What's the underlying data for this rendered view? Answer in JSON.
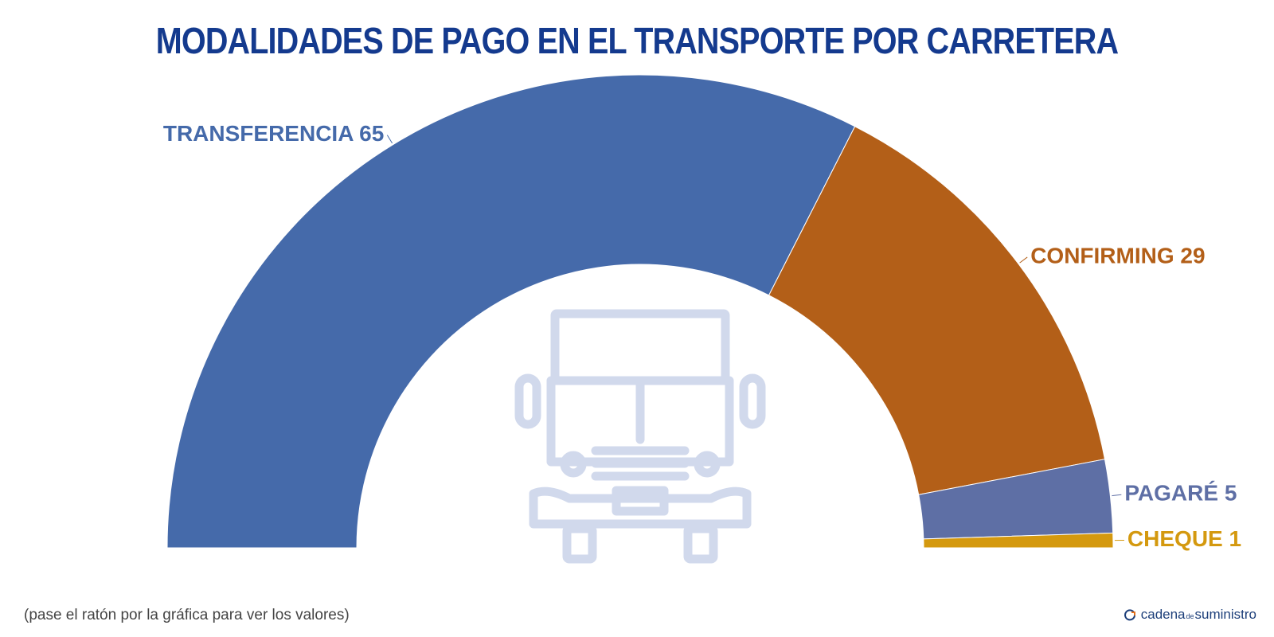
{
  "title": "MODALIDADES DE PAGO EN EL TRANSPORTE POR CARRETERA",
  "footnote": "(pase el ratón por la gráfica para ver los valores)",
  "brand": {
    "part1": "cadena",
    "part2": "de",
    "part3": "suministro",
    "icon": "refresh-arc-icon"
  },
  "center_icon": "truck-front-icon",
  "chart_data": {
    "type": "pie",
    "variant": "semicircle-donut",
    "title": "MODALIDADES DE PAGO EN EL TRANSPORTE POR CARRETERA",
    "total": 100,
    "slices": [
      {
        "label": "TRANSFERENCIA",
        "value": 65,
        "color": "#456aaa",
        "label_color": "#456aaa"
      },
      {
        "label": "CONFIRMING",
        "value": 29,
        "color": "#b35f18",
        "label_color": "#b35f18"
      },
      {
        "label": "PAGARÉ",
        "value": 5,
        "color": "#5e6fa5",
        "label_color": "#5e6fa5"
      },
      {
        "label": "CHEQUE",
        "value": 1,
        "color": "#d4990f",
        "label_color": "#d4990f"
      }
    ]
  }
}
